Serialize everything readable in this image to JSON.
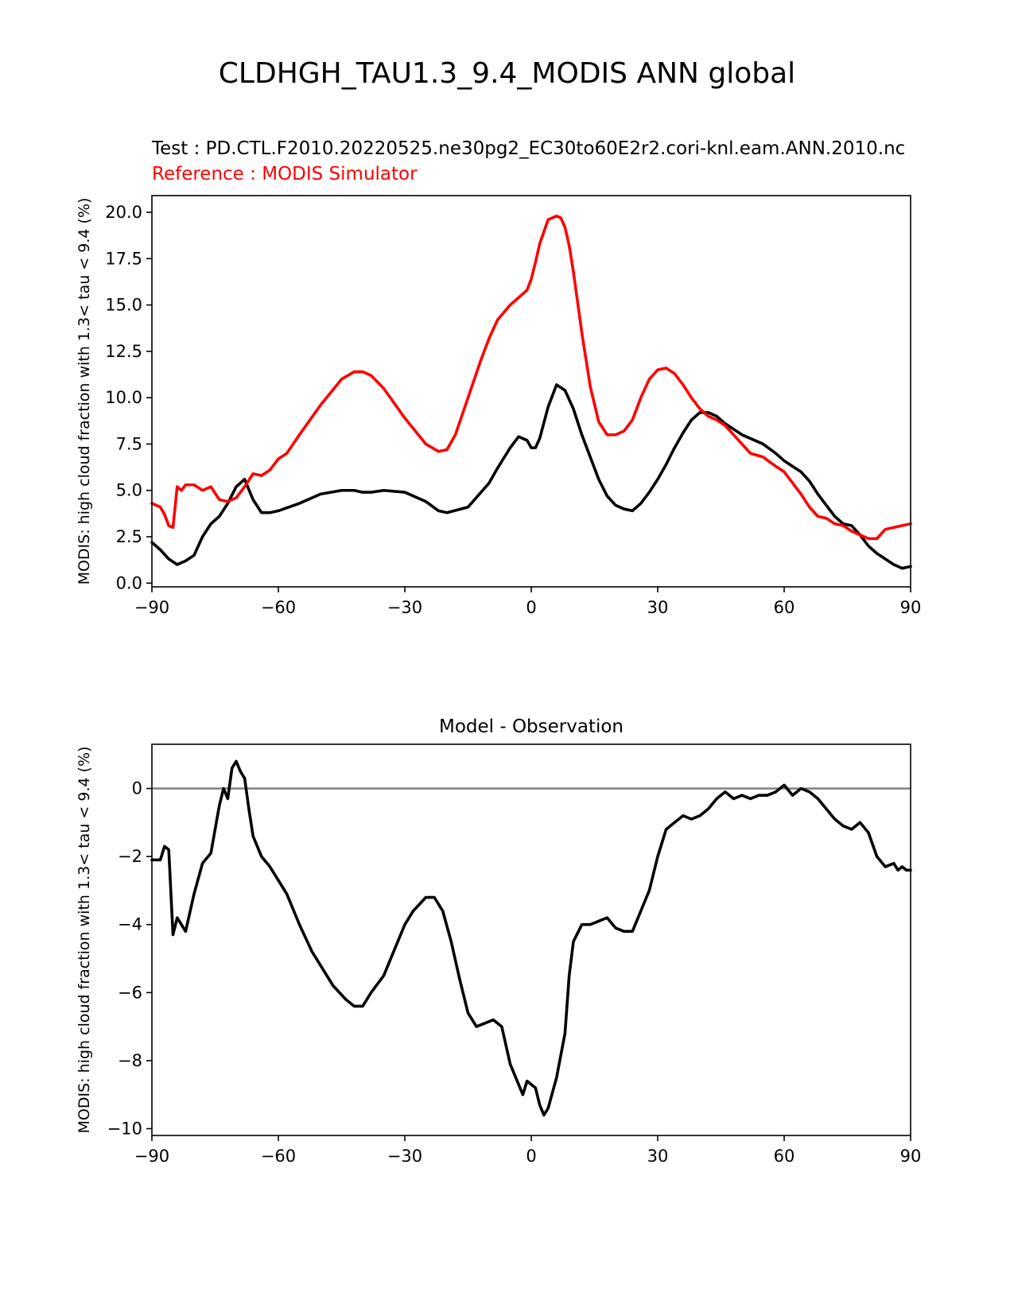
{
  "figure": {
    "title": "CLDHGH_TAU1.3_9.4_MODIS ANN global",
    "test_label": "Test : PD.CTL.F2010.20220525.ne30pg2_EC30to60E2r2.cori-knl.eam.ANN.2010.nc",
    "reference_label": "Reference : MODIS Simulator"
  },
  "chart_data": [
    {
      "type": "line",
      "title": "",
      "xlabel": "",
      "ylabel": "MODIS: high cloud fraction with 1.3< tau < 9.4 (%)",
      "xlim": [
        -90,
        90
      ],
      "ylim": [
        -0.2,
        20.9
      ],
      "xticks": [
        -90,
        -60,
        -30,
        0,
        30,
        60,
        90
      ],
      "xtick_labels": [
        "−90",
        "−60",
        "−30",
        "0",
        "30",
        "60",
        "90"
      ],
      "yticks": [
        0.0,
        2.5,
        5.0,
        7.5,
        10.0,
        12.5,
        15.0,
        17.5,
        20.0
      ],
      "ytick_labels": [
        "0.0",
        "2.5",
        "5.0",
        "7.5",
        "10.0",
        "12.5",
        "15.0",
        "17.5",
        "20.0"
      ],
      "grid": false,
      "series": [
        {
          "name": "Test",
          "color": "#000000",
          "x": [
            -90,
            -88,
            -86,
            -84,
            -82,
            -80,
            -78,
            -76,
            -74,
            -72,
            -70,
            -68,
            -66,
            -64,
            -62,
            -60,
            -55,
            -50,
            -45,
            -42,
            -40,
            -38,
            -35,
            -30,
            -25,
            -22,
            -20,
            -15,
            -10,
            -8,
            -5,
            -3,
            -1,
            0,
            1,
            2,
            4,
            6,
            8,
            10,
            12,
            14,
            16,
            18,
            20,
            22,
            24,
            26,
            28,
            30,
            32,
            34,
            36,
            38,
            40,
            42,
            44,
            46,
            48,
            50,
            52,
            55,
            58,
            60,
            62,
            64,
            66,
            68,
            70,
            72,
            74,
            76,
            78,
            80,
            82,
            84,
            86,
            88,
            90
          ],
          "y": [
            2.2,
            1.8,
            1.3,
            1.0,
            1.2,
            1.5,
            2.5,
            3.2,
            3.6,
            4.3,
            5.2,
            5.6,
            4.5,
            3.8,
            3.8,
            3.9,
            4.3,
            4.8,
            5.0,
            5.0,
            4.9,
            4.9,
            5.0,
            4.9,
            4.4,
            3.9,
            3.8,
            4.1,
            5.4,
            6.2,
            7.3,
            7.9,
            7.7,
            7.3,
            7.3,
            7.8,
            9.5,
            10.7,
            10.4,
            9.4,
            8.0,
            6.8,
            5.6,
            4.7,
            4.2,
            4.0,
            3.9,
            4.3,
            4.9,
            5.6,
            6.4,
            7.3,
            8.1,
            8.8,
            9.2,
            9.2,
            9.0,
            8.6,
            8.3,
            8.0,
            7.8,
            7.5,
            7.0,
            6.6,
            6.3,
            6.0,
            5.5,
            4.8,
            4.2,
            3.6,
            3.2,
            3.1,
            2.6,
            2.0,
            1.6,
            1.3,
            1.0,
            0.8,
            0.9
          ]
        },
        {
          "name": "Reference",
          "color": "#ff0000",
          "x": [
            -90,
            -88,
            -87,
            -86,
            -85,
            -84,
            -83,
            -82,
            -80,
            -78,
            -76,
            -74,
            -72,
            -70,
            -68,
            -66,
            -64,
            -62,
            -60,
            -58,
            -55,
            -50,
            -45,
            -42,
            -40,
            -38,
            -35,
            -30,
            -25,
            -22,
            -20,
            -18,
            -15,
            -12,
            -10,
            -8,
            -5,
            -3,
            -1,
            0,
            1,
            2,
            4,
            6,
            7,
            8,
            9,
            10,
            12,
            14,
            16,
            18,
            20,
            22,
            24,
            26,
            28,
            30,
            32,
            34,
            36,
            38,
            40,
            42,
            44,
            46,
            48,
            50,
            52,
            55,
            58,
            60,
            62,
            64,
            66,
            68,
            70,
            72,
            74,
            76,
            78,
            80,
            82,
            84,
            86,
            88,
            90
          ],
          "y": [
            4.3,
            4.1,
            3.7,
            3.1,
            3.0,
            5.2,
            5.0,
            5.3,
            5.3,
            5.0,
            5.2,
            4.5,
            4.4,
            4.6,
            5.2,
            5.9,
            5.8,
            6.1,
            6.7,
            7.0,
            8.0,
            9.6,
            11.0,
            11.4,
            11.4,
            11.2,
            10.5,
            8.9,
            7.5,
            7.1,
            7.2,
            8.0,
            10.0,
            12.0,
            13.2,
            14.2,
            15.0,
            15.4,
            15.8,
            16.4,
            17.3,
            18.3,
            19.6,
            19.8,
            19.7,
            19.2,
            18.2,
            16.8,
            13.5,
            10.6,
            8.7,
            8.0,
            8.0,
            8.2,
            8.8,
            10.0,
            11.0,
            11.5,
            11.6,
            11.3,
            10.7,
            10.0,
            9.4,
            9.0,
            8.8,
            8.5,
            8.0,
            7.5,
            7.0,
            6.8,
            6.3,
            6.0,
            5.4,
            4.8,
            4.1,
            3.6,
            3.5,
            3.2,
            3.1,
            2.8,
            2.6,
            2.4,
            2.4,
            2.9,
            3.0,
            3.1,
            3.2
          ]
        }
      ]
    },
    {
      "type": "line",
      "title": "Model - Observation",
      "xlabel": "",
      "ylabel": "MODIS: high cloud fraction with 1.3< tau < 9.4 (%)",
      "xlim": [
        -90,
        90
      ],
      "ylim": [
        -10.2,
        1.3
      ],
      "xticks": [
        -90,
        -60,
        -30,
        0,
        30,
        60,
        90
      ],
      "xtick_labels": [
        "−90",
        "−60",
        "−30",
        "0",
        "30",
        "60",
        "90"
      ],
      "yticks": [
        -10,
        -8,
        -6,
        -4,
        -2,
        0
      ],
      "ytick_labels": [
        "−10",
        "−8",
        "−6",
        "−4",
        "−2",
        "0"
      ],
      "grid": false,
      "zero_line_color": "#808080",
      "series": [
        {
          "name": "Difference",
          "color": "#000000",
          "x": [
            -90,
            -88,
            -87,
            -86,
            -85,
            -84,
            -83,
            -82,
            -80,
            -78,
            -76,
            -74,
            -73,
            -72,
            -71,
            -70,
            -69,
            -68,
            -67,
            -66,
            -64,
            -62,
            -60,
            -58,
            -55,
            -52,
            -50,
            -47,
            -44,
            -42,
            -40,
            -38,
            -35,
            -32,
            -30,
            -28,
            -25,
            -23,
            -21,
            -19,
            -17,
            -15,
            -13,
            -11,
            -9,
            -7,
            -5,
            -3,
            -2,
            -1,
            0,
            1,
            2,
            3,
            4,
            6,
            8,
            9,
            10,
            12,
            14,
            16,
            18,
            20,
            22,
            24,
            26,
            28,
            30,
            32,
            34,
            36,
            38,
            40,
            42,
            44,
            46,
            48,
            50,
            52,
            54,
            56,
            58,
            60,
            62,
            64,
            66,
            68,
            70,
            72,
            74,
            76,
            78,
            80,
            82,
            84,
            86,
            87,
            88,
            89,
            90
          ],
          "y": [
            -2.1,
            -2.1,
            -1.7,
            -1.8,
            -4.3,
            -3.8,
            -4.0,
            -4.2,
            -3.1,
            -2.2,
            -1.9,
            -0.5,
            0.0,
            -0.3,
            0.6,
            0.8,
            0.5,
            0.3,
            -0.6,
            -1.4,
            -2.0,
            -2.3,
            -2.7,
            -3.1,
            -4.0,
            -4.8,
            -5.2,
            -5.8,
            -6.2,
            -6.4,
            -6.4,
            -6.0,
            -5.5,
            -4.6,
            -4.0,
            -3.6,
            -3.2,
            -3.2,
            -3.6,
            -4.5,
            -5.6,
            -6.6,
            -7.0,
            -6.9,
            -6.8,
            -7.0,
            -8.1,
            -8.7,
            -9.0,
            -8.6,
            -8.7,
            -8.8,
            -9.3,
            -9.6,
            -9.4,
            -8.5,
            -7.2,
            -5.5,
            -4.5,
            -4.0,
            -4.0,
            -3.9,
            -3.8,
            -4.1,
            -4.2,
            -4.2,
            -3.6,
            -3.0,
            -2.0,
            -1.2,
            -1.0,
            -0.8,
            -0.9,
            -0.8,
            -0.6,
            -0.3,
            -0.1,
            -0.3,
            -0.2,
            -0.3,
            -0.2,
            -0.2,
            -0.1,
            0.1,
            -0.2,
            0.0,
            -0.1,
            -0.3,
            -0.6,
            -0.9,
            -1.1,
            -1.2,
            -1.0,
            -1.3,
            -2.0,
            -2.3,
            -2.2,
            -2.4,
            -2.3,
            -2.4,
            -2.4
          ]
        }
      ]
    }
  ]
}
